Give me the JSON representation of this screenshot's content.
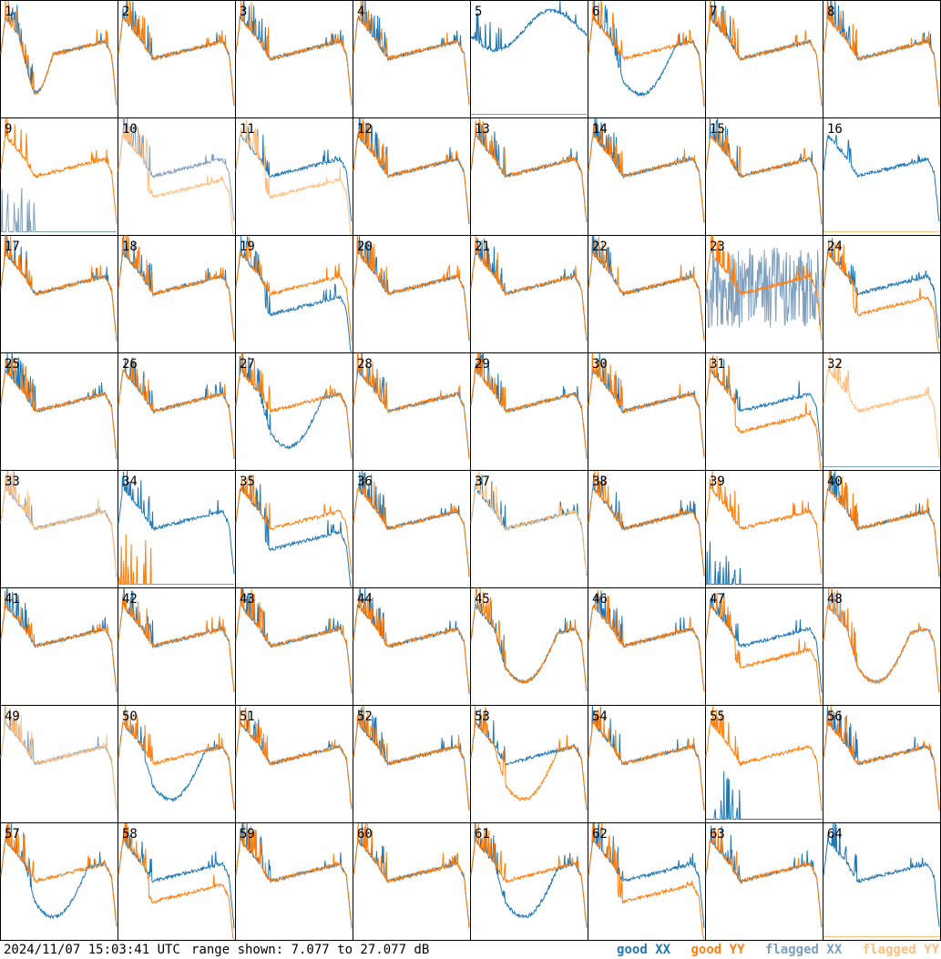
{
  "footer": {
    "timestamp": "2024/11/07 15:03:41 UTC",
    "range_text": "range shown: 7.077 to 27.077 dB"
  },
  "legend": {
    "good_xx_prefix": "good",
    "good_xx_pol": "XX",
    "good_yy_prefix": "good",
    "good_yy_pol": "YY",
    "flagged_xx_prefix": "flagged",
    "flagged_xx_pol": "XX",
    "flagged_yy_prefix": "flagged",
    "flagged_yy_pol": "YY"
  },
  "colors": {
    "good_xx": "#1f77b4",
    "good_yy": "#ff7f0e",
    "flagged_xx": "#7f9fbf",
    "flagged_yy": "#ffbf80",
    "grid": "#000000"
  },
  "chart_data": {
    "type": "line",
    "title": "",
    "range_db": [
      7.077,
      27.077
    ],
    "layout": "8x8 grid",
    "series_names": [
      "good XX",
      "good YY",
      "flagged XX",
      "flagged YY"
    ],
    "panels": [
      {
        "id": "1",
        "xx": "good",
        "yy": "good",
        "xx_shape": "highdip",
        "yy_shape": "highdip"
      },
      {
        "id": "2",
        "xx": "good",
        "yy": "good",
        "xx_shape": "normal",
        "yy_shape": "normal"
      },
      {
        "id": "3",
        "xx": "good",
        "yy": "good",
        "xx_shape": "normal",
        "yy_shape": "normal"
      },
      {
        "id": "4",
        "xx": "good",
        "yy": "good",
        "xx_shape": "normal",
        "yy_shape": "normal"
      },
      {
        "id": "5",
        "xx": "good",
        "yy": "good",
        "xx_shape": "midwave",
        "yy_shape": "flat"
      },
      {
        "id": "6",
        "xx": "good",
        "yy": "good",
        "xx_shape": "dip",
        "yy_shape": "normal"
      },
      {
        "id": "7",
        "xx": "good",
        "yy": "good",
        "xx_shape": "normal",
        "yy_shape": "normal"
      },
      {
        "id": "8",
        "xx": "good",
        "yy": "good",
        "xx_shape": "normal",
        "yy_shape": "normal"
      },
      {
        "id": "9",
        "xx": "flagged",
        "yy": "good",
        "xx_shape": "spikes",
        "yy_shape": "normal"
      },
      {
        "id": "10",
        "xx": "flagged",
        "yy": "flagged",
        "xx_shape": "normal",
        "yy_shape": "lowdip"
      },
      {
        "id": "11",
        "xx": "good",
        "yy": "flagged",
        "xx_shape": "normal",
        "yy_shape": "lowdip"
      },
      {
        "id": "12",
        "xx": "good",
        "yy": "good",
        "xx_shape": "normal",
        "yy_shape": "normal"
      },
      {
        "id": "13",
        "xx": "good",
        "yy": "good",
        "xx_shape": "normal",
        "yy_shape": "normal"
      },
      {
        "id": "14",
        "xx": "good",
        "yy": "good",
        "xx_shape": "normal",
        "yy_shape": "normal"
      },
      {
        "id": "15",
        "xx": "good",
        "yy": "good",
        "xx_shape": "normal",
        "yy_shape": "normal"
      },
      {
        "id": "16",
        "xx": "good",
        "yy": "flagged",
        "xx_shape": "normal",
        "yy_shape": "flat"
      },
      {
        "id": "17",
        "xx": "good",
        "yy": "good",
        "xx_shape": "normal",
        "yy_shape": "normal"
      },
      {
        "id": "18",
        "xx": "good",
        "yy": "good",
        "xx_shape": "normal",
        "yy_shape": "normal"
      },
      {
        "id": "19",
        "xx": "good",
        "yy": "good",
        "xx_shape": "lowdip",
        "yy_shape": "normal"
      },
      {
        "id": "20",
        "xx": "good",
        "yy": "good",
        "xx_shape": "normal",
        "yy_shape": "normal"
      },
      {
        "id": "21",
        "xx": "good",
        "yy": "good",
        "xx_shape": "normal",
        "yy_shape": "normal"
      },
      {
        "id": "22",
        "xx": "good",
        "yy": "good",
        "xx_shape": "normal",
        "yy_shape": "normal"
      },
      {
        "id": "23",
        "xx": "flagged",
        "yy": "good",
        "xx_shape": "noisy",
        "yy_shape": "normal"
      },
      {
        "id": "24",
        "xx": "good",
        "yy": "good",
        "xx_shape": "normal",
        "yy_shape": "lowdip"
      },
      {
        "id": "25",
        "xx": "good",
        "yy": "good",
        "xx_shape": "normal",
        "yy_shape": "normal"
      },
      {
        "id": "26",
        "xx": "good",
        "yy": "good",
        "xx_shape": "normal",
        "yy_shape": "normal"
      },
      {
        "id": "27",
        "xx": "good",
        "yy": "good",
        "xx_shape": "dip",
        "yy_shape": "normal"
      },
      {
        "id": "28",
        "xx": "good",
        "yy": "good",
        "xx_shape": "normal",
        "yy_shape": "normal"
      },
      {
        "id": "29",
        "xx": "good",
        "yy": "good",
        "xx_shape": "normal",
        "yy_shape": "normal"
      },
      {
        "id": "30",
        "xx": "good",
        "yy": "good",
        "xx_shape": "normal",
        "yy_shape": "normal"
      },
      {
        "id": "31",
        "xx": "good",
        "yy": "good",
        "xx_shape": "normal",
        "yy_shape": "lowdip"
      },
      {
        "id": "32",
        "xx": "flagged",
        "yy": "flagged",
        "xx_shape": "flat",
        "yy_shape": "normal"
      },
      {
        "id": "33",
        "xx": "flagged",
        "yy": "flagged",
        "xx_shape": "normal",
        "yy_shape": "normal"
      },
      {
        "id": "34",
        "xx": "good",
        "yy": "good",
        "xx_shape": "normal",
        "yy_shape": "spikes"
      },
      {
        "id": "35",
        "xx": "good",
        "yy": "good",
        "xx_shape": "lowdip",
        "yy_shape": "normal"
      },
      {
        "id": "36",
        "xx": "good",
        "yy": "good",
        "xx_shape": "normal",
        "yy_shape": "normal"
      },
      {
        "id": "37",
        "xx": "good",
        "yy": "flagged",
        "xx_shape": "normal",
        "yy_shape": "normal"
      },
      {
        "id": "38",
        "xx": "good",
        "yy": "good",
        "xx_shape": "normal",
        "yy_shape": "normal"
      },
      {
        "id": "39",
        "xx": "good",
        "yy": "good",
        "xx_shape": "spikes",
        "yy_shape": "normal"
      },
      {
        "id": "40",
        "xx": "good",
        "yy": "good",
        "xx_shape": "normal",
        "yy_shape": "normal"
      },
      {
        "id": "41",
        "xx": "good",
        "yy": "good",
        "xx_shape": "normal",
        "yy_shape": "normal"
      },
      {
        "id": "42",
        "xx": "good",
        "yy": "good",
        "xx_shape": "normal",
        "yy_shape": "normal"
      },
      {
        "id": "43",
        "xx": "good",
        "yy": "good",
        "xx_shape": "normal",
        "yy_shape": "normal"
      },
      {
        "id": "44",
        "xx": "good",
        "yy": "good",
        "xx_shape": "normal",
        "yy_shape": "normal"
      },
      {
        "id": "45",
        "xx": "good",
        "yy": "good",
        "xx_shape": "dip",
        "yy_shape": "dip"
      },
      {
        "id": "46",
        "xx": "good",
        "yy": "good",
        "xx_shape": "normal",
        "yy_shape": "normal"
      },
      {
        "id": "47",
        "xx": "good",
        "yy": "good",
        "xx_shape": "normal",
        "yy_shape": "lowdip"
      },
      {
        "id": "48",
        "xx": "flagged",
        "yy": "good",
        "xx_shape": "dip",
        "yy_shape": "dip"
      },
      {
        "id": "49",
        "xx": "flagged",
        "yy": "flagged",
        "xx_shape": "normal",
        "yy_shape": "normal"
      },
      {
        "id": "50",
        "xx": "good",
        "yy": "good",
        "xx_shape": "dip",
        "yy_shape": "normal"
      },
      {
        "id": "51",
        "xx": "good",
        "yy": "good",
        "xx_shape": "normal",
        "yy_shape": "normal"
      },
      {
        "id": "52",
        "xx": "good",
        "yy": "good",
        "xx_shape": "normal",
        "yy_shape": "normal"
      },
      {
        "id": "53",
        "xx": "good",
        "yy": "good",
        "xx_shape": "normal",
        "yy_shape": "dip"
      },
      {
        "id": "54",
        "xx": "good",
        "yy": "good",
        "xx_shape": "normal",
        "yy_shape": "normal"
      },
      {
        "id": "55",
        "xx": "good",
        "yy": "good",
        "xx_shape": "spikes",
        "yy_shape": "normal"
      },
      {
        "id": "56",
        "xx": "good",
        "yy": "good",
        "xx_shape": "normal",
        "yy_shape": "normal"
      },
      {
        "id": "57",
        "xx": "good",
        "yy": "good",
        "xx_shape": "dip",
        "yy_shape": "normal"
      },
      {
        "id": "58",
        "xx": "good",
        "yy": "good",
        "xx_shape": "normal",
        "yy_shape": "lowdip"
      },
      {
        "id": "59",
        "xx": "good",
        "yy": "good",
        "xx_shape": "normal",
        "yy_shape": "normal"
      },
      {
        "id": "60",
        "xx": "good",
        "yy": "good",
        "xx_shape": "normal",
        "yy_shape": "normal"
      },
      {
        "id": "61",
        "xx": "good",
        "yy": "good",
        "xx_shape": "dip",
        "yy_shape": "normal"
      },
      {
        "id": "62",
        "xx": "good",
        "yy": "good",
        "xx_shape": "normal",
        "yy_shape": "lowdip"
      },
      {
        "id": "63",
        "xx": "good",
        "yy": "good",
        "xx_shape": "normal",
        "yy_shape": "normal"
      },
      {
        "id": "64",
        "xx": "good",
        "yy": "flagged",
        "xx_shape": "normal",
        "yy_shape": "flat"
      }
    ]
  }
}
